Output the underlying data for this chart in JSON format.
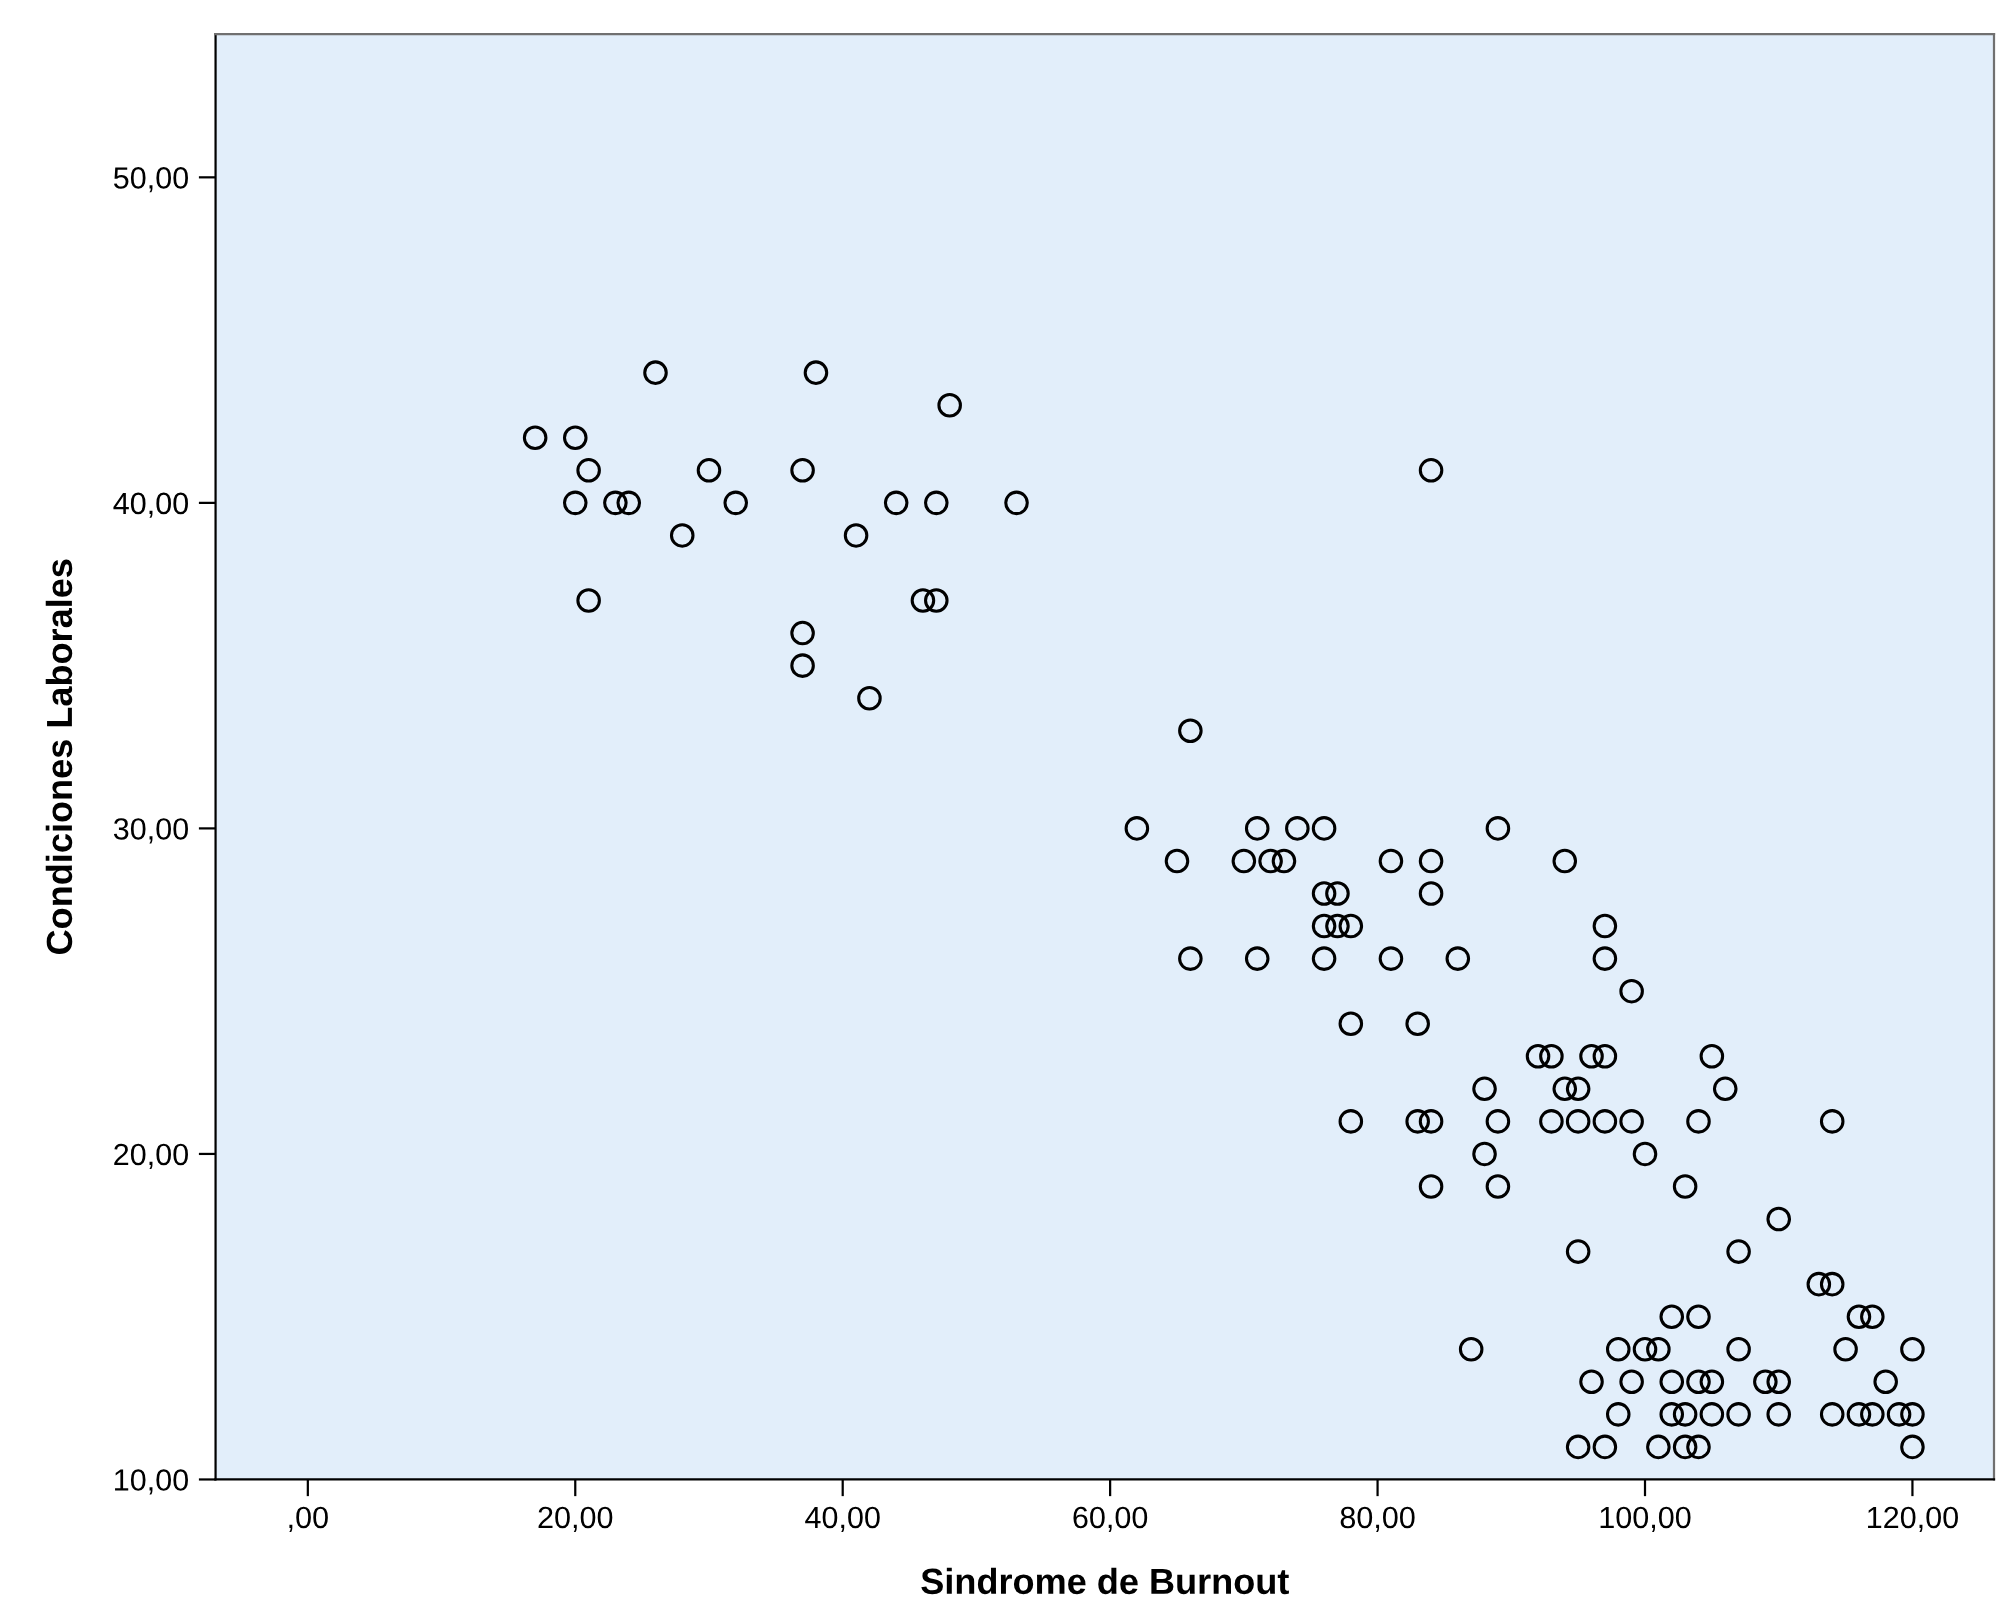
{
  "chart_data": {
    "type": "scatter",
    "xlabel": "Sindrome de Burnout",
    "ylabel": "Condiciones Laborales",
    "xlim": [
      -6.9,
      126.1
    ],
    "ylim": [
      10,
      54.4
    ],
    "xticks": [
      {
        "value": 0,
        "label": ",00"
      },
      {
        "value": 20,
        "label": "20,00"
      },
      {
        "value": 40,
        "label": "40,00"
      },
      {
        "value": 60,
        "label": "60,00"
      },
      {
        "value": 80,
        "label": "80,00"
      },
      {
        "value": 100,
        "label": "100,00"
      },
      {
        "value": 120,
        "label": "120,00"
      }
    ],
    "yticks": [
      {
        "value": 10,
        "label": "10,00"
      },
      {
        "value": 20,
        "label": "20,00"
      },
      {
        "value": 30,
        "label": "30,00"
      },
      {
        "value": 40,
        "label": "40,00"
      },
      {
        "value": 50,
        "label": "50,00"
      }
    ],
    "grid": false,
    "legend": false,
    "marker": "circle",
    "series": [
      {
        "color": "#000000",
        "x": [
          17,
          20,
          21,
          30,
          37,
          20,
          23,
          24,
          32,
          44,
          47,
          53,
          26,
          38,
          48,
          28,
          41,
          21,
          46,
          47,
          37,
          37,
          42,
          84,
          66,
          62,
          71,
          74,
          76,
          89,
          65,
          70,
          72,
          73,
          81,
          84,
          94,
          76,
          77,
          84,
          76,
          77,
          78,
          97,
          66,
          71,
          76,
          81,
          86,
          97,
          99,
          78,
          83,
          92,
          93,
          96,
          97,
          105,
          88,
          94,
          95,
          106,
          78,
          83,
          84,
          89,
          93,
          95,
          97,
          99,
          104,
          114,
          88,
          100,
          84,
          89,
          103,
          110,
          95,
          107,
          113,
          114,
          102,
          104,
          116,
          117,
          87,
          98,
          100,
          101,
          107,
          115,
          120,
          96,
          99,
          102,
          104,
          105,
          109,
          110,
          118,
          98,
          102,
          103,
          105,
          107,
          110,
          114,
          116,
          117,
          119,
          120,
          95,
          97,
          101,
          103,
          104,
          120
        ],
        "values": [
          42,
          42,
          41,
          41,
          41,
          40,
          40,
          40,
          40,
          40,
          40,
          40,
          44,
          44,
          43,
          39,
          39,
          37,
          37,
          37,
          36,
          35,
          34,
          41,
          33,
          30,
          30,
          30,
          30,
          30,
          29,
          29,
          29,
          29,
          29,
          29,
          29,
          28,
          28,
          28,
          27,
          27,
          27,
          27,
          26,
          26,
          26,
          26,
          26,
          26,
          25,
          24,
          24,
          23,
          23,
          23,
          23,
          23,
          22,
          22,
          22,
          22,
          21,
          21,
          21,
          21,
          21,
          21,
          21,
          21,
          21,
          21,
          20,
          20,
          19,
          19,
          19,
          18,
          17,
          17,
          16,
          16,
          15,
          15,
          15,
          15,
          14,
          14,
          14,
          14,
          14,
          14,
          14,
          13,
          13,
          13,
          13,
          13,
          13,
          13,
          13,
          12,
          12,
          12,
          12,
          12,
          12,
          12,
          12,
          12,
          12,
          12,
          11,
          11,
          11,
          11,
          11,
          11
        ]
      }
    ]
  }
}
